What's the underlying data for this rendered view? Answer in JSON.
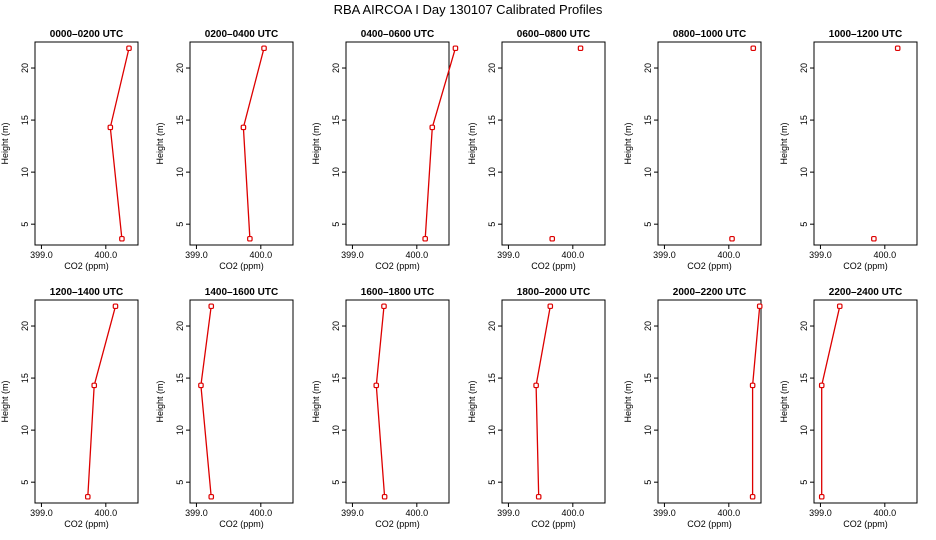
{
  "chart_data": {
    "type": "line",
    "title": "RBA AIRCOA I  Day 130107  Calibrated Profiles",
    "xlabel": "CO2 (ppm)",
    "ylabel": "Height (m)",
    "xlim": [
      398.9,
      400.5
    ],
    "ylim": [
      3,
      22.5
    ],
    "x_ticks": [
      399.0,
      400.0
    ],
    "x_tick_labels": [
      "399.0",
      "400.0"
    ],
    "y_ticks": [
      5,
      10,
      15,
      20
    ],
    "y_tick_labels": [
      "5",
      "10",
      "15",
      "20"
    ],
    "line_color": "#dd0000",
    "panels": [
      {
        "title": "0000–0200 UTC",
        "points": [
          [
            400.36,
            21.9
          ],
          [
            400.07,
            14.3
          ],
          [
            400.25,
            3.6
          ]
        ]
      },
      {
        "title": "0200–0400 UTC",
        "points": [
          [
            400.05,
            21.9
          ],
          [
            399.73,
            14.3
          ],
          [
            399.83,
            3.6
          ]
        ]
      },
      {
        "title": "0400–0600 UTC",
        "points": [
          [
            400.6,
            21.9
          ],
          [
            400.24,
            14.3
          ],
          [
            400.13,
            3.6
          ]
        ]
      },
      {
        "title": "0600–0800 UTC",
        "points": [
          [
            400.12,
            21.9
          ],
          [
            399.68,
            3.6
          ]
        ]
      },
      {
        "title": "0800–1000 UTC",
        "points": [
          [
            400.38,
            21.9
          ],
          [
            400.05,
            3.6
          ]
        ]
      },
      {
        "title": "1000–1200 UTC",
        "points": [
          [
            400.2,
            21.9
          ],
          [
            399.83,
            3.6
          ]
        ]
      },
      {
        "title": "1200–1400 UTC",
        "points": [
          [
            400.15,
            21.9
          ],
          [
            399.82,
            14.3
          ],
          [
            399.72,
            3.6
          ]
        ]
      },
      {
        "title": "1400–1600 UTC",
        "points": [
          [
            399.23,
            21.9
          ],
          [
            399.07,
            14.3
          ],
          [
            399.23,
            3.6
          ]
        ]
      },
      {
        "title": "1600–1800 UTC",
        "points": [
          [
            399.49,
            21.9
          ],
          [
            399.37,
            14.3
          ],
          [
            399.5,
            3.6
          ]
        ]
      },
      {
        "title": "1800–2000 UTC",
        "points": [
          [
            399.65,
            21.9
          ],
          [
            399.43,
            14.3
          ],
          [
            399.47,
            3.6
          ]
        ]
      },
      {
        "title": "2000–2200 UTC",
        "points": [
          [
            400.48,
            21.9
          ],
          [
            400.37,
            14.3
          ],
          [
            400.37,
            3.6
          ]
        ]
      },
      {
        "title": "2200–2400 UTC",
        "points": [
          [
            399.3,
            21.9
          ],
          [
            399.02,
            14.3
          ],
          [
            399.02,
            3.6
          ]
        ]
      }
    ]
  }
}
